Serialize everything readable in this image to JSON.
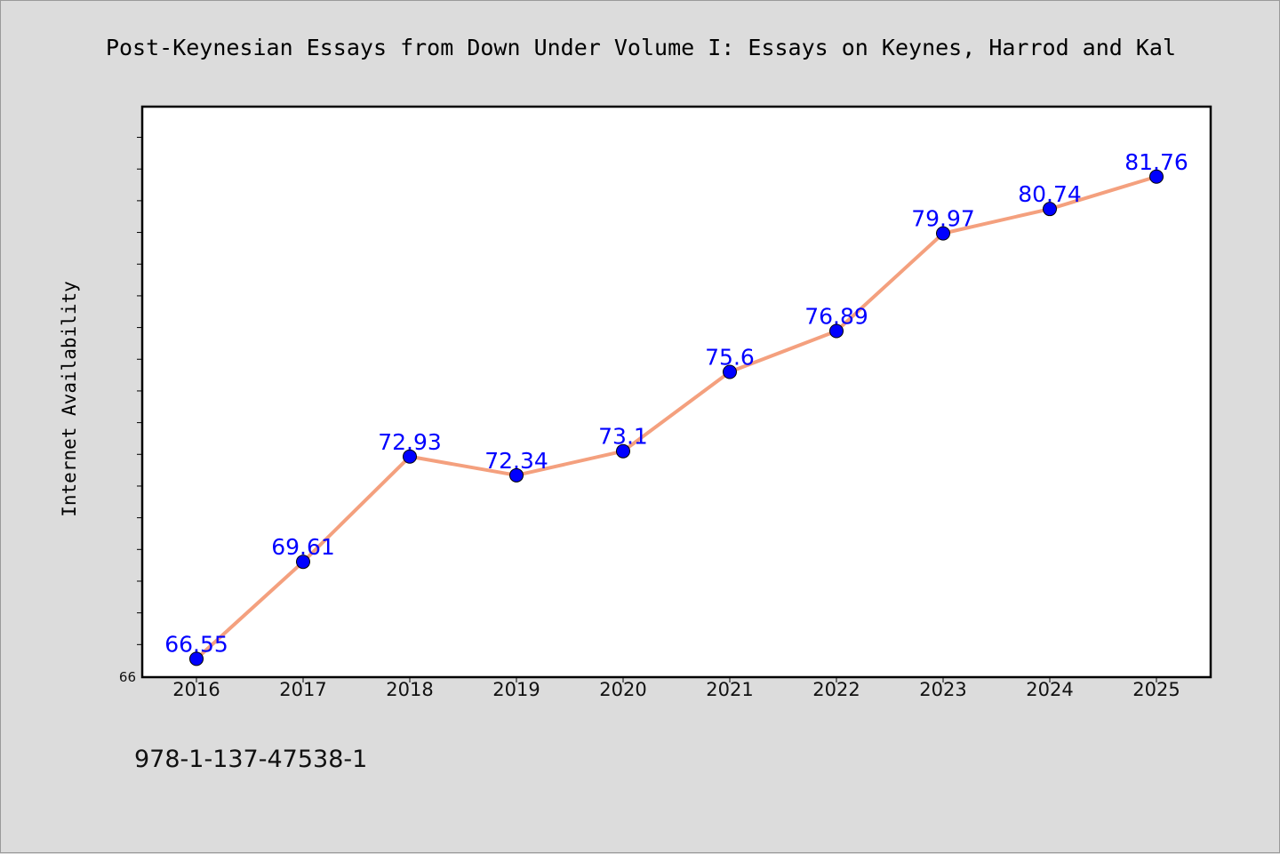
{
  "chart_data": {
    "type": "line",
    "title": "Post-Keynesian Essays from Down Under Volume I: Essays on Keynes, Harrod and Kal",
    "xlabel": "",
    "ylabel": "Internet Availability",
    "ylim": [
      66,
      83.94
    ],
    "y_tick_label": "66",
    "categories": [
      "2016",
      "2017",
      "2018",
      "2019",
      "2020",
      "2021",
      "2022",
      "2023",
      "2024",
      "2025"
    ],
    "series": [
      {
        "values": [
          66.55,
          69.61,
          72.93,
          72.34,
          73.1,
          75.6,
          76.89,
          79.97,
          80.74,
          81.76
        ],
        "labels": [
          "66.55",
          "69.61",
          "72.93",
          "72.34",
          "73.1",
          "75.6",
          "76.89",
          "79.97",
          "80.74",
          "81.76"
        ]
      }
    ],
    "grid": false,
    "legend": "none",
    "colors": {
      "line": "#f4a07e",
      "marker": "#0000ff",
      "label": "#0000ff"
    }
  },
  "footer": {
    "code": "978-1-137-47538-1"
  }
}
